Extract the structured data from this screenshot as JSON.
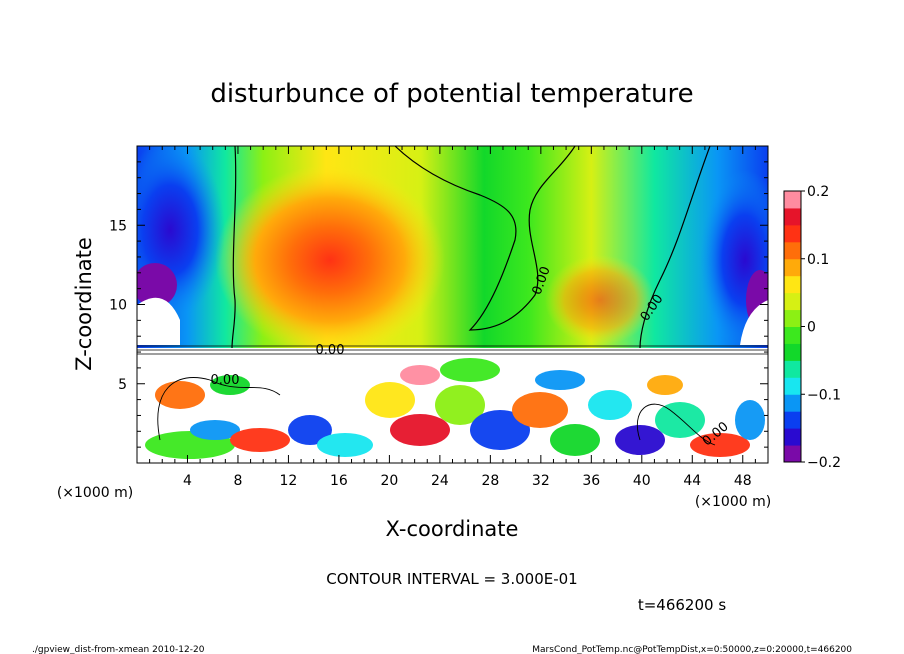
{
  "chart_data": {
    "type": "heatmap",
    "title": "disturbunce of potential temperature",
    "xlabel": "X-coordinate",
    "ylabel": "Z-coordinate",
    "x_unit_left": "(×1000 m)",
    "x_unit_right": "(×1000 m)",
    "xlim": [
      0,
      50
    ],
    "ylim": [
      0,
      20
    ],
    "x_ticks": [
      4,
      8,
      12,
      16,
      20,
      24,
      28,
      32,
      36,
      40,
      44,
      48
    ],
    "x_tick_labels": [
      "4",
      "8",
      "12",
      "16",
      "20",
      "24",
      "28",
      "32",
      "36",
      "40",
      "44",
      "48"
    ],
    "y_ticks": [
      5,
      10,
      15
    ],
    "y_tick_labels": [
      "5",
      "10",
      "15"
    ],
    "colorbar": {
      "range": [
        -0.2,
        0.2
      ],
      "ticks": [
        0.2,
        0.1,
        0,
        -0.1,
        -0.2
      ],
      "tick_labels": [
        "0.2",
        "0.1",
        "0",
        "−0.1",
        "−0.2"
      ],
      "colors": [
        "#7a0aa8",
        "#2a0ad0",
        "#0a3ff0",
        "#0a96f5",
        "#18e6f0",
        "#10e8a0",
        "#12d82a",
        "#3ce81e",
        "#8cf014",
        "#d6f014",
        "#ffe614",
        "#ffaa0a",
        "#ff6e0a",
        "#ff3214",
        "#e6142a",
        "#ff8ca0"
      ]
    },
    "contour_label": "0.00",
    "contour_interval_text": "CONTOUR INTERVAL = 3.000E-01",
    "time_text": "t=466200 s"
  },
  "footer": {
    "left": "./gpview_dist-from-xmean  2010-12-20",
    "right": "MarsCond_PotTemp.nc@PotTempDist,x=0:50000,z=0:20000,t=466200"
  }
}
